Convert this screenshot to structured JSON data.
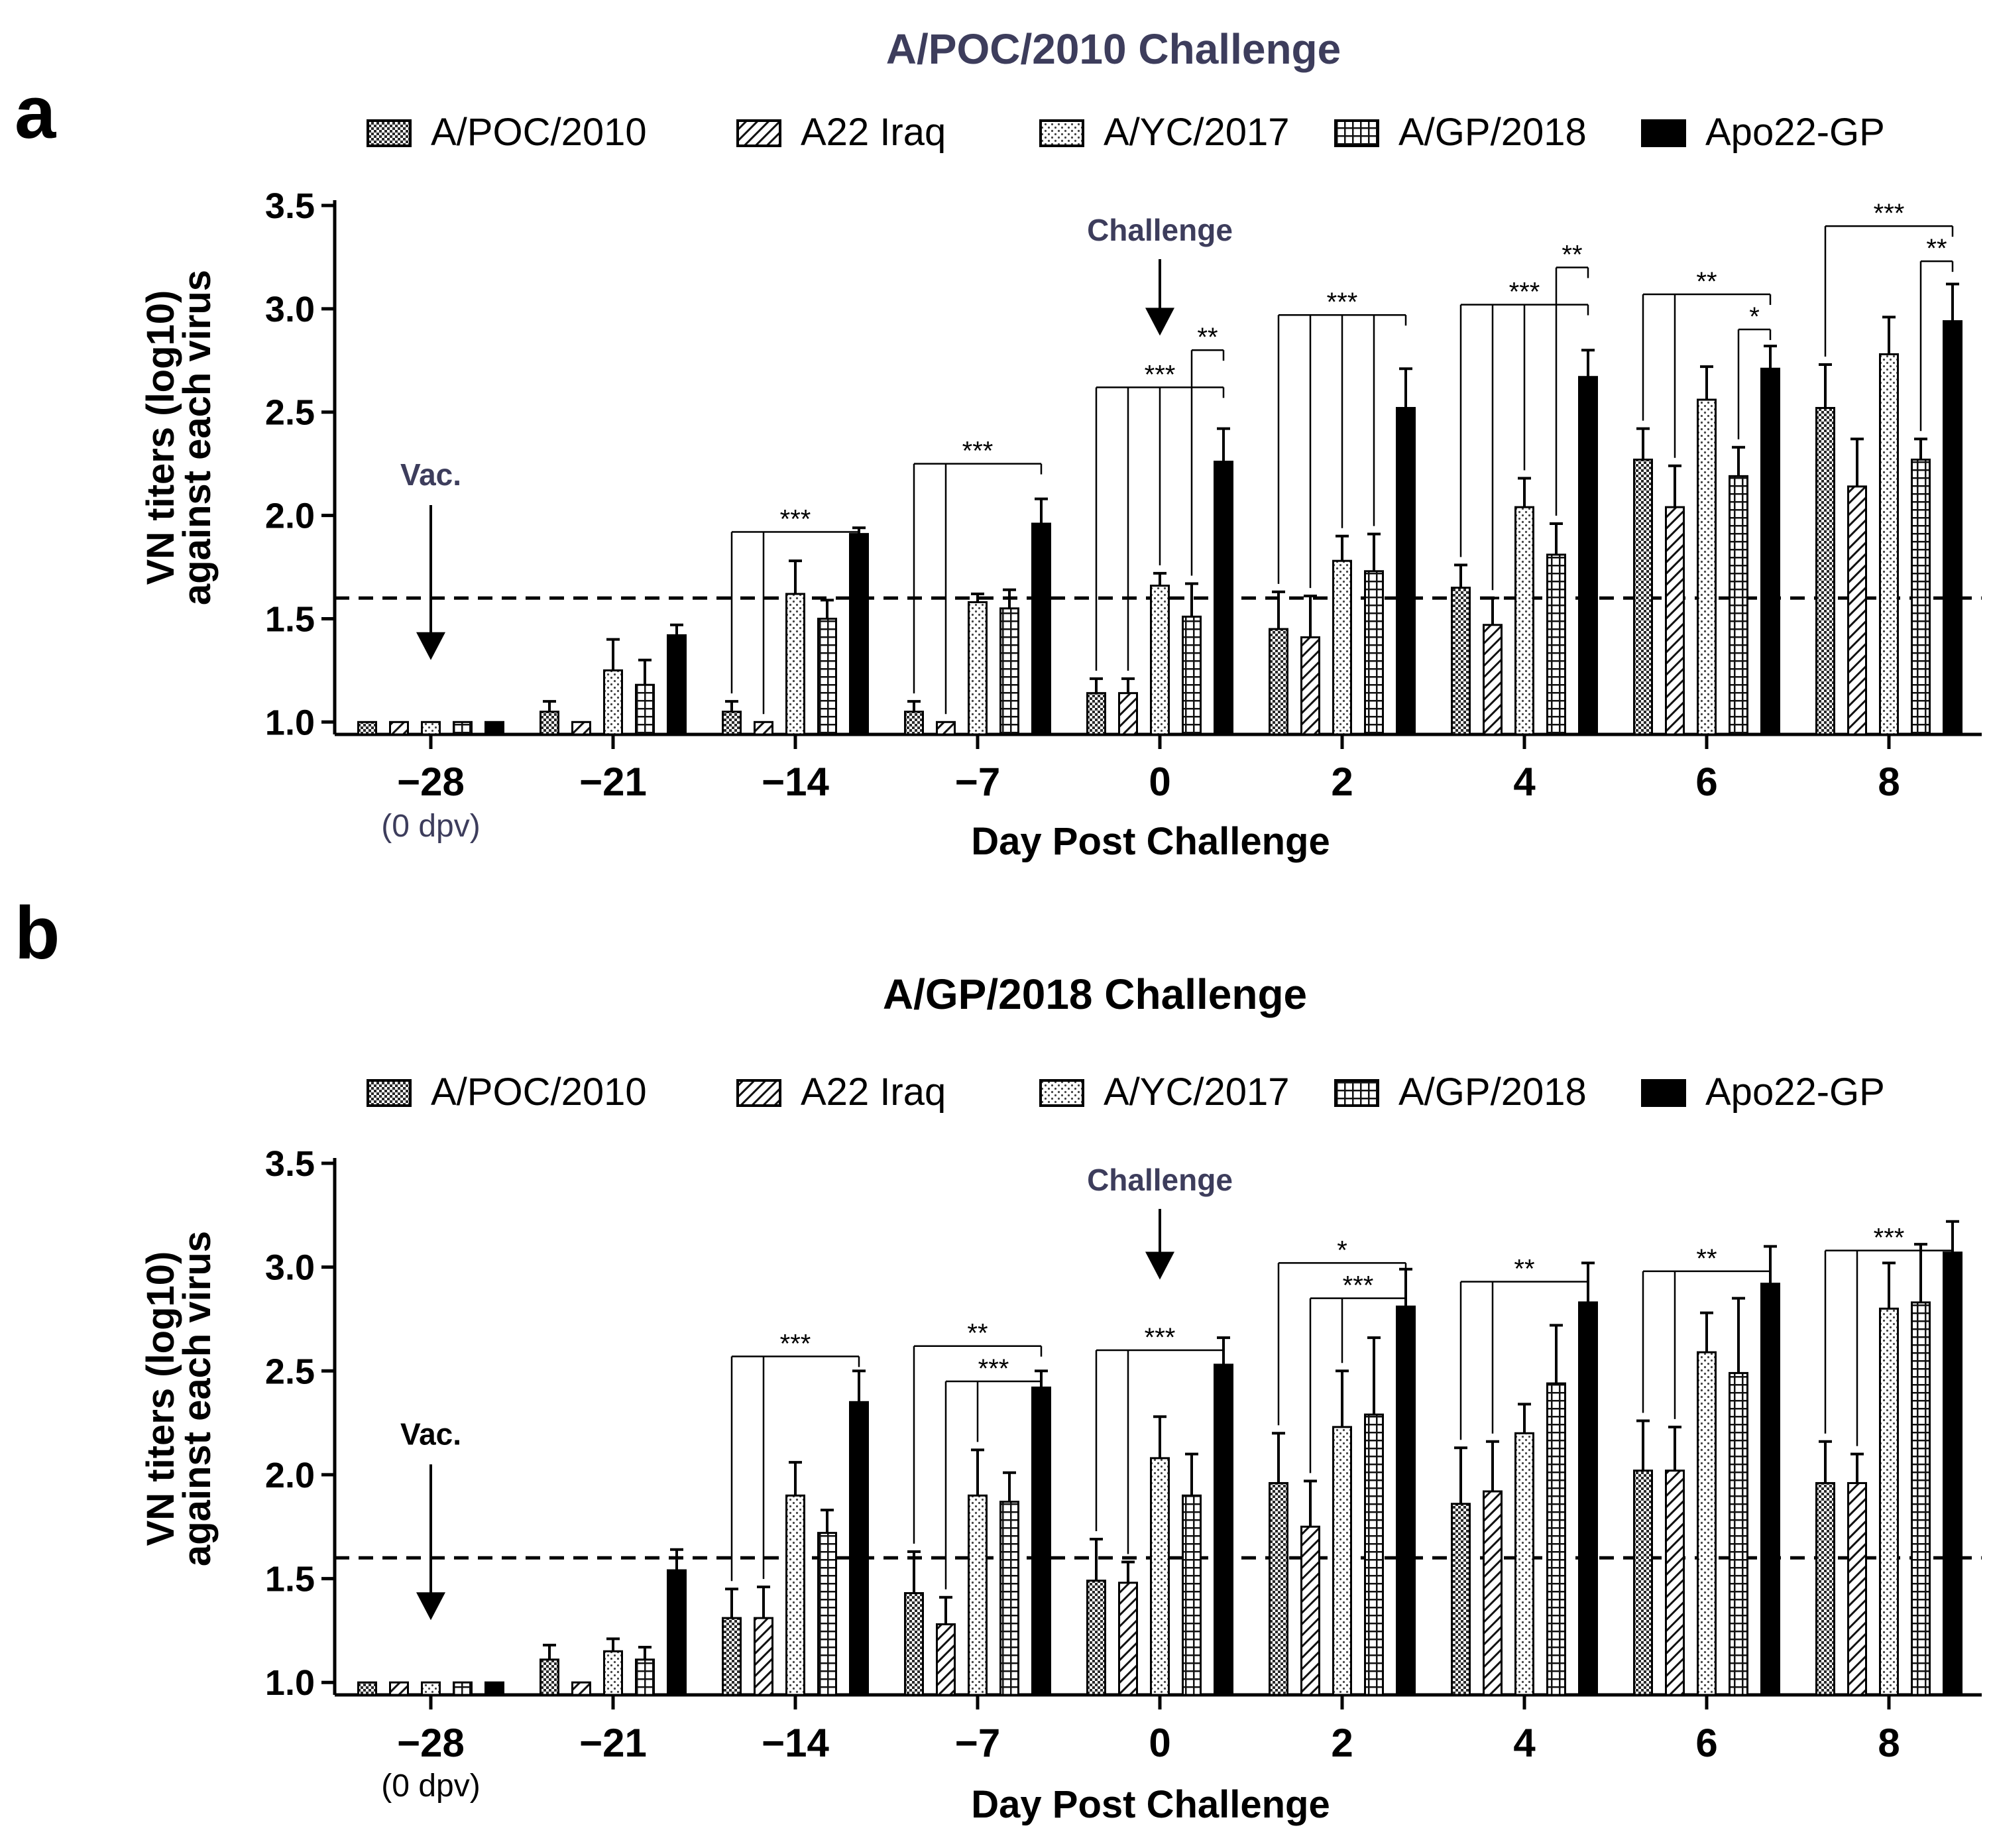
{
  "figure": {
    "legend_labels": [
      "A/POC/2010",
      "A22 Iraq",
      "A/YC/2017",
      "A/GP/2018",
      "Apo22-GP"
    ],
    "xlabel": "Day Post Challenge",
    "ylabel_line1": "VN titers (log10)",
    "ylabel_line2": "against each virus",
    "first_tick_note": "(0 dpv)",
    "challenge_label": "Challenge",
    "vac_label": "Vac."
  },
  "chart_data": [
    {
      "type": "bar",
      "panel_letter": "a",
      "title": "A/POC/2010 Challenge",
      "xlabel": "Day Post Challenge",
      "ylabel": "VN titers (log10) against each virus",
      "ylim": [
        0.94,
        3.5
      ],
      "yticks": [
        "1.0",
        "1.5",
        "2.0",
        "2.5",
        "3.0",
        "3.5"
      ],
      "threshold": 1.6,
      "categories": [
        "−28",
        "−21",
        "−14",
        "−7",
        "0",
        "2",
        "4",
        "6",
        "8"
      ],
      "series": [
        {
          "name": "A/POC/2010",
          "values": [
            1.0,
            1.05,
            1.05,
            1.05,
            1.14,
            1.45,
            1.65,
            2.27,
            2.52
          ],
          "errors": [
            0,
            0.05,
            0.05,
            0.05,
            0.07,
            0.18,
            0.11,
            0.15,
            0.21
          ]
        },
        {
          "name": "A22 Iraq",
          "values": [
            1.0,
            1.0,
            1.0,
            1.0,
            1.14,
            1.41,
            1.47,
            2.04,
            2.14
          ],
          "errors": [
            0,
            0,
            0,
            0,
            0.07,
            0.2,
            0.13,
            0.2,
            0.23
          ]
        },
        {
          "name": "A/YC/2017",
          "values": [
            1.0,
            1.25,
            1.62,
            1.58,
            1.66,
            1.78,
            2.04,
            2.56,
            2.78
          ],
          "errors": [
            0,
            0.15,
            0.16,
            0.04,
            0.06,
            0.12,
            0.14,
            0.16,
            0.18
          ]
        },
        {
          "name": "A/GP/2018",
          "values": [
            1.0,
            1.18,
            1.5,
            1.55,
            1.51,
            1.73,
            1.81,
            2.19,
            2.27
          ],
          "errors": [
            0,
            0.12,
            0.09,
            0.09,
            0.16,
            0.18,
            0.15,
            0.14,
            0.1
          ]
        },
        {
          "name": "Apo22-GP",
          "values": [
            1.0,
            1.42,
            1.91,
            1.96,
            2.26,
            2.52,
            2.67,
            2.71,
            2.94
          ],
          "errors": [
            0,
            0.05,
            0.03,
            0.12,
            0.16,
            0.19,
            0.13,
            0.11,
            0.18
          ]
        }
      ],
      "challenge_category_index": 4,
      "vac_category_index": 0,
      "significance": [
        {
          "category": "−14",
          "lines": [
            {
              "label": "***",
              "from_series": [
                0,
                1
              ],
              "y": 1.92
            }
          ]
        },
        {
          "category": "−7",
          "lines": [
            {
              "label": "***",
              "from_series": [
                0,
                1
              ],
              "y": 2.25
            }
          ]
        },
        {
          "category": "0",
          "lines": [
            {
              "label": "***",
              "from_series": [
                0,
                1,
                2
              ],
              "y": 2.62
            },
            {
              "label": "**",
              "from_series": [
                3
              ],
              "y": 2.8
            }
          ]
        },
        {
          "category": "2",
          "lines": [
            {
              "label": "***",
              "from_series": [
                0,
                1,
                2,
                3
              ],
              "y": 2.97
            }
          ]
        },
        {
          "category": "4",
          "lines": [
            {
              "label": "***",
              "from_series": [
                0,
                1,
                2
              ],
              "y": 3.02
            },
            {
              "label": "**",
              "from_series": [
                3
              ],
              "y": 3.2
            }
          ]
        },
        {
          "category": "6",
          "lines": [
            {
              "label": "**",
              "from_series": [
                0,
                1
              ],
              "y": 3.07
            },
            {
              "label": "*",
              "from_series": [
                3
              ],
              "y": 2.9
            }
          ]
        },
        {
          "category": "8",
          "lines": [
            {
              "label": "***",
              "from_series": [
                0
              ],
              "y": 3.4
            },
            {
              "label": "**",
              "from_series": [
                3
              ],
              "y": 3.23
            }
          ]
        }
      ]
    },
    {
      "type": "bar",
      "panel_letter": "b",
      "title": "A/GP/2018 Challenge",
      "xlabel": "Day Post Challenge",
      "ylabel": "VN titers (log10) against each virus",
      "ylim": [
        0.94,
        3.5
      ],
      "yticks": [
        "1.0",
        "1.5",
        "2.0",
        "2.5",
        "3.0",
        "3.5"
      ],
      "threshold": 1.6,
      "categories": [
        "−28",
        "−21",
        "−14",
        "−7",
        "0",
        "2",
        "4",
        "6",
        "8"
      ],
      "series": [
        {
          "name": "A/POC/2010",
          "values": [
            1.0,
            1.11,
            1.31,
            1.43,
            1.49,
            1.96,
            1.86,
            2.02,
            1.96
          ],
          "errors": [
            0,
            0.07,
            0.14,
            0.2,
            0.2,
            0.24,
            0.27,
            0.24,
            0.2
          ]
        },
        {
          "name": "A22 Iraq",
          "values": [
            1.0,
            1.0,
            1.31,
            1.28,
            1.48,
            1.75,
            1.92,
            2.02,
            1.96
          ],
          "errors": [
            0,
            0,
            0.15,
            0.13,
            0.1,
            0.22,
            0.24,
            0.21,
            0.14
          ]
        },
        {
          "name": "A/YC/2017",
          "values": [
            1.0,
            1.15,
            1.9,
            1.9,
            2.08,
            2.23,
            2.2,
            2.59,
            2.8
          ],
          "errors": [
            0,
            0.06,
            0.16,
            0.22,
            0.2,
            0.27,
            0.14,
            0.19,
            0.22
          ]
        },
        {
          "name": "A/GP/2018",
          "values": [
            1.0,
            1.11,
            1.72,
            1.87,
            1.9,
            2.29,
            2.44,
            2.49,
            2.83
          ],
          "errors": [
            0,
            0.06,
            0.11,
            0.14,
            0.2,
            0.37,
            0.28,
            0.36,
            0.28
          ]
        },
        {
          "name": "Apo22-GP",
          "values": [
            1.0,
            1.54,
            2.35,
            2.42,
            2.53,
            2.81,
            2.83,
            2.92,
            3.07
          ],
          "errors": [
            0,
            0.1,
            0.15,
            0.08,
            0.13,
            0.18,
            0.19,
            0.18,
            0.15
          ]
        }
      ],
      "challenge_category_index": 4,
      "vac_category_index": 0,
      "significance": [
        {
          "category": "−14",
          "lines": [
            {
              "label": "***",
              "from_series": [
                0,
                1
              ],
              "y": 2.57
            }
          ]
        },
        {
          "category": "−7",
          "lines": [
            {
              "label": "**",
              "from_series": [
                0
              ],
              "y": 2.62
            },
            {
              "label": "***",
              "from_series": [
                1,
                2
              ],
              "y": 2.45
            }
          ]
        },
        {
          "category": "0",
          "lines": [
            {
              "label": "***",
              "from_series": [
                0,
                1
              ],
              "y": 2.6
            }
          ]
        },
        {
          "category": "2",
          "lines": [
            {
              "label": "*",
              "from_series": [
                0
              ],
              "y": 3.02
            },
            {
              "label": "***",
              "from_series": [
                1,
                2
              ],
              "y": 2.85
            }
          ]
        },
        {
          "category": "4",
          "lines": [
            {
              "label": "**",
              "from_series": [
                0,
                1
              ],
              "y": 2.93
            }
          ]
        },
        {
          "category": "6",
          "lines": [
            {
              "label": "**",
              "from_series": [
                0,
                1
              ],
              "y": 2.98
            }
          ]
        },
        {
          "category": "8",
          "lines": [
            {
              "label": "***",
              "from_series": [
                0,
                1
              ],
              "y": 3.08
            }
          ]
        }
      ]
    }
  ]
}
